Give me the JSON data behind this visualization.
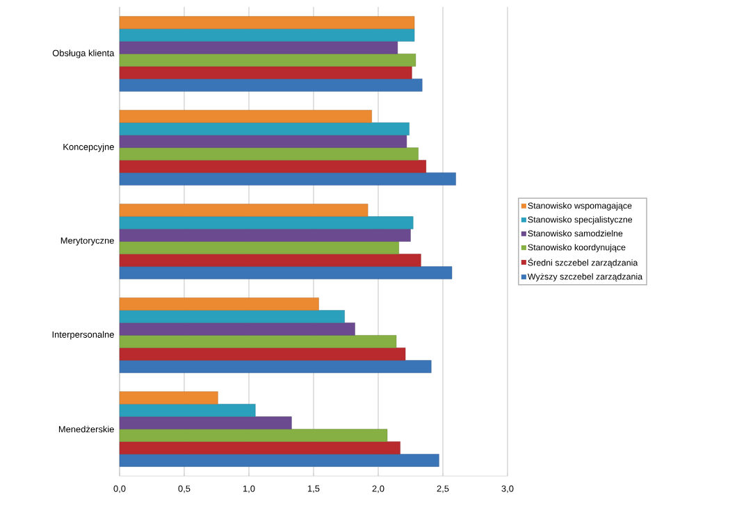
{
  "chart_data": {
    "type": "bar",
    "orientation": "horizontal",
    "categories": [
      "Obsługa klienta",
      "Koncepcyjne",
      "Merytoryczne",
      "Interpersonalne",
      "Menedżerskie"
    ],
    "series": [
      {
        "name": "Wyższy szczebel zarządzania",
        "color": "#3a75b8",
        "values": [
          2.34,
          2.6,
          2.57,
          2.41,
          2.47
        ]
      },
      {
        "name": "Średni szczebel zarządzania",
        "color": "#b82a2d",
        "values": [
          2.26,
          2.37,
          2.33,
          2.21,
          2.17
        ]
      },
      {
        "name": "Stanowisko koordynujące",
        "color": "#86b043",
        "values": [
          2.29,
          2.31,
          2.16,
          2.14,
          2.07
        ]
      },
      {
        "name": "Stanowisko samodzielne",
        "color": "#6b4a90",
        "values": [
          2.15,
          2.22,
          2.25,
          1.82,
          1.33
        ]
      },
      {
        "name": "Stanowisko specjalistyczne",
        "color": "#2aa0bd",
        "values": [
          2.28,
          2.24,
          2.27,
          1.74,
          1.05
        ]
      },
      {
        "name": "Stanowisko wspomagające",
        "color": "#ec8a32",
        "values": [
          2.28,
          1.95,
          1.92,
          1.54,
          0.76
        ]
      }
    ],
    "xlim": [
      0,
      3
    ],
    "xticks": [
      {
        "value": 0,
        "label": "0,0"
      },
      {
        "value": 0.5,
        "label": "0,5"
      },
      {
        "value": 1,
        "label": "1,0"
      },
      {
        "value": 1.5,
        "label": "1,5"
      },
      {
        "value": 2,
        "label": "2,0"
      },
      {
        "value": 2.5,
        "label": "2,5"
      },
      {
        "value": 3,
        "label": "3,0"
      }
    ],
    "grid": "x",
    "legend": "right"
  }
}
